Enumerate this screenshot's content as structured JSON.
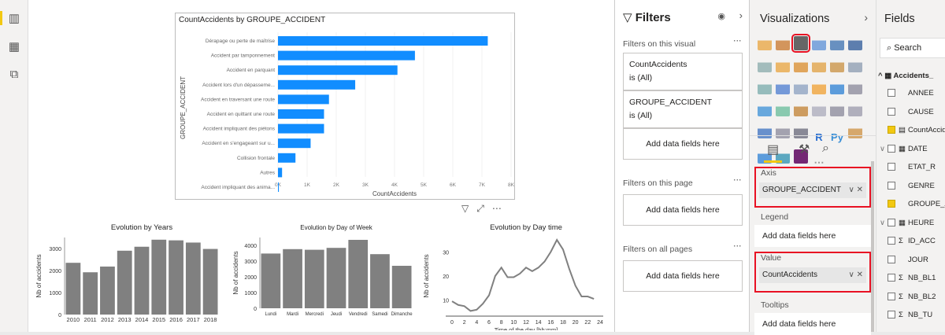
{
  "leftbar": {
    "icons": [
      "report-view-icon",
      "data-view-icon",
      "model-view-icon"
    ]
  },
  "main_chart": {
    "title": "CountAccidents by GROUPE_ACCIDENT",
    "chart_data": {
      "type": "bar",
      "orientation": "horizontal",
      "title": "CountAccidents by GROUPE_ACCIDENT",
      "xlabel": "CountAccidents",
      "ylabel": "GROUPE_ACCIDENT",
      "categories": [
        "Dérapage ou perte de maîtrise",
        "Accident par tamponnement",
        "Accident en parquant",
        "Accident lors d'un dépasseme...",
        "Accident en traversant une route",
        "Accident en quittant une route",
        "Accident impliquant des piétons",
        "Accident en s'engageant sur u...",
        "Collision frontale",
        "Autres",
        "Accident impliquant des anima..."
      ],
      "values": [
        7200,
        4700,
        4100,
        2650,
        1750,
        1580,
        1580,
        1120,
        600,
        140,
        30
      ],
      "xlim": [
        0,
        8000
      ],
      "ticks": [
        "0K",
        "1K",
        "2K",
        "3K",
        "4K",
        "5K",
        "6K",
        "7K",
        "8K"
      ],
      "color": "#118dff"
    }
  },
  "chart_data": [
    {
      "type": "bar",
      "title": "Evolution by Years",
      "ylabel": "Nb of accidents",
      "categories": [
        "2010",
        "2011",
        "2012",
        "2013",
        "2014",
        "2015",
        "2016",
        "2017",
        "2018"
      ],
      "values": [
        2350,
        1920,
        2180,
        2900,
        3080,
        3400,
        3370,
        3270,
        2980
      ],
      "ylim": [
        0,
        3500
      ],
      "yticks": [
        "0",
        "1000",
        "2000",
        "3000"
      ]
    },
    {
      "type": "bar",
      "title": "Evolution by Day of Week",
      "ylabel": "Nb of accidents",
      "categories": [
        "Lundi",
        "Mardi",
        "Mercredi",
        "Jeudi",
        "Vendredi",
        "Samedi",
        "Dimanche"
      ],
      "values": [
        3480,
        3760,
        3720,
        3840,
        4350,
        3440,
        2700
      ],
      "ylim": [
        0,
        4500
      ],
      "yticks": [
        "0",
        "1000",
        "2000",
        "3000",
        "4000"
      ]
    },
    {
      "type": "line",
      "title": "Evolution by Day time",
      "xlabel": "Time of the day  [hh:mm]",
      "ylabel": "Nb of accidents",
      "x": [
        0,
        1,
        2,
        3,
        4,
        5,
        6,
        7,
        8,
        9,
        10,
        11,
        12,
        13,
        14,
        15,
        16,
        17,
        18,
        19,
        20,
        21,
        22,
        23
      ],
      "values": [
        9.5,
        8,
        7.5,
        5.5,
        6,
        8.5,
        12,
        20,
        23.5,
        19.5,
        19.5,
        21,
        23.5,
        22,
        23.5,
        26,
        30,
        35,
        31,
        23,
        16,
        11.5,
        11.5,
        10.5
      ],
      "xlim": [
        0,
        24
      ],
      "ylim": [
        4,
        36
      ],
      "xticks": [
        "0",
        "2",
        "4",
        "6",
        "8",
        "10",
        "12",
        "14",
        "16",
        "18",
        "20",
        "22",
        "24"
      ],
      "yticks": [
        "10",
        "20",
        "30"
      ]
    }
  ],
  "filters": {
    "title": "Filters",
    "on_visual": "Filters on this visual",
    "cards": [
      {
        "field": "CountAccidents",
        "value": "is (All)"
      },
      {
        "field": "GROUPE_ACCIDENT",
        "value": "is (All)"
      }
    ],
    "add": "Add data fields here",
    "on_page": "Filters on this page",
    "on_all": "Filters on all pages"
  },
  "viz": {
    "title": "Visualizations",
    "axis": "Axis",
    "axis_field": "GROUPE_ACCIDENT",
    "legend": "Legend",
    "value": "Value",
    "value_field": "CountAccidents",
    "tooltips": "Tooltips",
    "add": "Add data fields here"
  },
  "fields": {
    "title": "Fields",
    "search": "Search",
    "table": "Accidents_",
    "items": [
      {
        "name": "ANNEE",
        "checked": false,
        "icon": ""
      },
      {
        "name": "CAUSE",
        "checked": false,
        "icon": ""
      },
      {
        "name": "CountAccidents",
        "checked": true,
        "icon": "calc"
      },
      {
        "name": "DATE",
        "checked": false,
        "icon": "cal"
      },
      {
        "name": "ETAT_R",
        "checked": false,
        "icon": ""
      },
      {
        "name": "GENRE",
        "checked": false,
        "icon": ""
      },
      {
        "name": "GROUPE_ACCIDENT",
        "checked": true,
        "icon": ""
      },
      {
        "name": "HEURE",
        "checked": false,
        "icon": "cal"
      },
      {
        "name": "ID_ACC",
        "checked": false,
        "icon": "sigma"
      },
      {
        "name": "JOUR",
        "checked": false,
        "icon": ""
      },
      {
        "name": "NB_BL1",
        "checked": false,
        "icon": "sigma"
      },
      {
        "name": "NB_BL2",
        "checked": false,
        "icon": "sigma"
      },
      {
        "name": "NB_TU",
        "checked": false,
        "icon": "sigma"
      }
    ]
  }
}
